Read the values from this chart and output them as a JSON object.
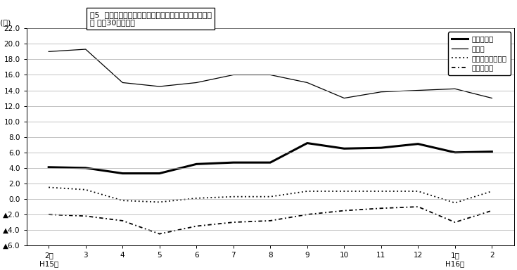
{
  "title_line1": "図5  主要業種別・常用労働者数の推移（対前年同月比）",
  "title_line2": "－ 規樨30人以上－",
  "ylabel": "(％)",
  "x_labels": [
    "2月\nH15年",
    "3",
    "4",
    "5",
    "6",
    "7",
    "8",
    "9",
    "10",
    "11",
    "12",
    "1月\nH16年",
    "2"
  ],
  "ylim": [
    -6.0,
    22.0
  ],
  "yticks": [
    -6.0,
    -4.0,
    -2.0,
    0.0,
    2.0,
    4.0,
    6.0,
    8.0,
    10.0,
    12.0,
    14.0,
    16.0,
    18.0,
    20.0,
    22.0
  ],
  "series_chosa": [
    4.1,
    4.0,
    3.3,
    3.3,
    4.5,
    4.7,
    4.7,
    7.2,
    6.5,
    6.6,
    7.1,
    6.0,
    6.1
  ],
  "series_seizou": [
    19.0,
    19.3,
    15.0,
    14.5,
    15.0,
    16.0,
    16.0,
    15.0,
    13.0,
    13.8,
    14.0,
    14.2,
    13.0
  ],
  "series_oroshi": [
    1.5,
    1.2,
    -0.2,
    -0.4,
    0.1,
    0.3,
    0.3,
    1.0,
    1.0,
    1.0,
    1.0,
    -0.5,
    1.0
  ],
  "series_service": [
    -2.0,
    -2.2,
    -2.8,
    -4.5,
    -3.5,
    -3.0,
    -2.8,
    -2.0,
    -1.5,
    -1.2,
    -1.0,
    -3.0,
    -1.5
  ],
  "legend_chosa": "調査産業計",
  "legend_seizou": "製造業",
  "legend_oroshi": "卵・小売・飲食店",
  "legend_service": "サービス業",
  "background_color": "#ffffff",
  "grid_color": "#aaaaaa"
}
